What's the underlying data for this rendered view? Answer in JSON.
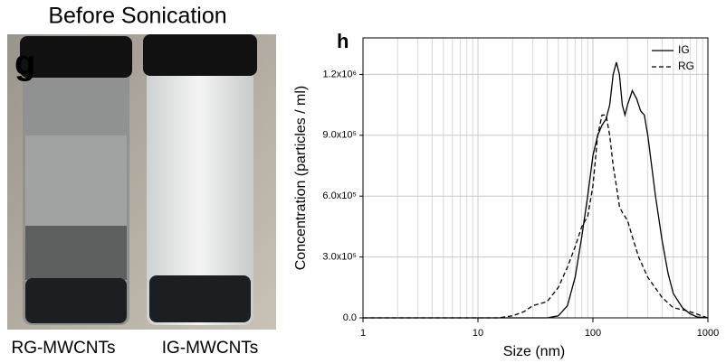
{
  "photo_panel": {
    "title": "Before Sonication",
    "panel_label": "g",
    "vial_labels": [
      "RG-MWCNTs",
      "IG-MWCNTs"
    ]
  },
  "chart_data": {
    "type": "line",
    "panel_label": "h",
    "x_label": "Size (nm)",
    "y_label": "Concentration (particles / ml)",
    "x_scale": "log",
    "xlim": [
      1,
      1000
    ],
    "xticks": [
      1,
      10,
      100,
      1000
    ],
    "ylim": [
      0,
      1380000
    ],
    "yticks": [
      {
        "value": 0,
        "label": "0.0"
      },
      {
        "value": 300000,
        "label": "3.0x10⁵"
      },
      {
        "value": 600000,
        "label": "6.0x10⁵"
      },
      {
        "value": 900000,
        "label": "9.0x10⁵"
      },
      {
        "value": 1200000,
        "label": "1.2x10⁶"
      }
    ],
    "grid": true,
    "legend": "upper right",
    "series": [
      {
        "name": "IG",
        "color": "#000000",
        "dash": "solid",
        "x": [
          1,
          40,
          50,
          60,
          70,
          80,
          90,
          100,
          110,
          120,
          130,
          140,
          150,
          160,
          170,
          180,
          190,
          200,
          220,
          240,
          260,
          280,
          300,
          350,
          400,
          450,
          500,
          600,
          700,
          800,
          1000
        ],
        "values": [
          0,
          0,
          10000,
          60000,
          200000,
          400000,
          600000,
          800000,
          900000,
          950000,
          980000,
          1050000,
          1200000,
          1260000,
          1200000,
          1050000,
          1000000,
          1050000,
          1120000,
          1080000,
          1020000,
          1000000,
          900000,
          600000,
          380000,
          220000,
          120000,
          50000,
          20000,
          5000,
          0
        ]
      },
      {
        "name": "RG",
        "color": "#000000",
        "dash": "dashed",
        "x": [
          1,
          15,
          20,
          25,
          30,
          40,
          50,
          60,
          70,
          80,
          90,
          100,
          110,
          120,
          130,
          140,
          150,
          160,
          170,
          180,
          200,
          220,
          250,
          300,
          400,
          500,
          600,
          700,
          1000
        ],
        "values": [
          0,
          0,
          10000,
          30000,
          60000,
          80000,
          150000,
          250000,
          350000,
          450000,
          500000,
          650000,
          900000,
          1000000,
          1000000,
          900000,
          750000,
          650000,
          550000,
          520000,
          480000,
          400000,
          300000,
          200000,
          100000,
          50000,
          40000,
          30000,
          0
        ]
      }
    ]
  }
}
